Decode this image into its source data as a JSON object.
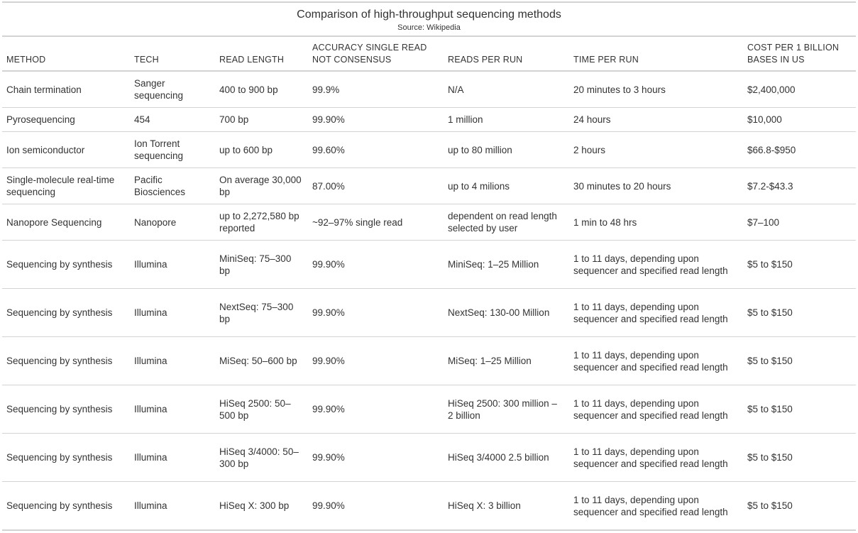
{
  "title": "Comparison of high-throughput sequencing methods",
  "subtitle": "Source: Wikipedia",
  "columns": [
    "METHOD",
    "TECH",
    "READ LENGTH",
    "ACCURACY SINGLE READ NOT CONSENSUS",
    "READS PER RUN",
    "TIME PER RUN",
    "COST PER 1 BILLION BASES IN US"
  ],
  "rows": [
    [
      "Chain termination",
      "Sanger sequencing",
      "400 to 900 bp",
      "99.9%",
      "N/A",
      "20 minutes to 3 hours",
      "$2,400,000"
    ],
    [
      "Pyrosequencing",
      "454",
      "700 bp",
      "99.90%",
      "1 million",
      "24 hours",
      "$10,000"
    ],
    [
      "Ion semiconductor",
      "Ion Torrent sequencing",
      "up to 600 bp",
      "99.60%",
      "up to 80 million",
      "2 hours",
      "$66.8-$950"
    ],
    [
      "Single-molecule real-time sequencing",
      "Pacific Biosciences",
      "On average 30,000 bp",
      "87.00%",
      "up to 4 milions",
      "30 minutes to 20 hours",
      "$7.2-$43.3"
    ],
    [
      "Nanopore Sequencing",
      "Nanopore",
      "up to 2,272,580 bp reported",
      "~92–97% single read",
      "dependent on read length selected by user",
      "1 min to 48 hrs",
      "$7–100"
    ],
    [
      "Sequencing by synthesis",
      "Illumina",
      "MiniSeq: 75–300 bp",
      "99.90%",
      "MiniSeq: 1–25 Million",
      "1 to 11 days, depending upon sequencer and specified read length",
      "$5 to $150"
    ],
    [
      "Sequencing by synthesis",
      "Illumina",
      "NextSeq: 75–300 bp",
      "99.90%",
      "NextSeq: 130-00 Million",
      "1 to 11 days, depending upon sequencer and specified read length",
      "$5 to $150"
    ],
    [
      "Sequencing by synthesis",
      "Illumina",
      "MiSeq: 50–600 bp",
      "99.90%",
      "MiSeq: 1–25 Million",
      "1 to 11 days, depending upon sequencer and specified read length",
      "$5 to $150"
    ],
    [
      "Sequencing by synthesis",
      "Illumina",
      "HiSeq 2500: 50–500 bp",
      "99.90%",
      "HiSeq 2500: 300 million – 2 billion",
      "1 to 11 days, depending upon sequencer and specified read length",
      "$5 to $150"
    ],
    [
      "Sequencing by synthesis",
      "Illumina",
      "HiSeq 3/4000: 50–300 bp",
      "99.90%",
      "HiSeq 3/4000 2.5 billion",
      "1 to 11 days, depending upon sequencer and specified read length",
      "$5 to $150"
    ],
    [
      "Sequencing by synthesis",
      "Illumina",
      "HiSeq X: 300 bp",
      "99.90%",
      "HiSeq X: 3 billion",
      "1 to 11 days, depending upon sequencer and specified read length",
      "$5 to $150"
    ]
  ]
}
